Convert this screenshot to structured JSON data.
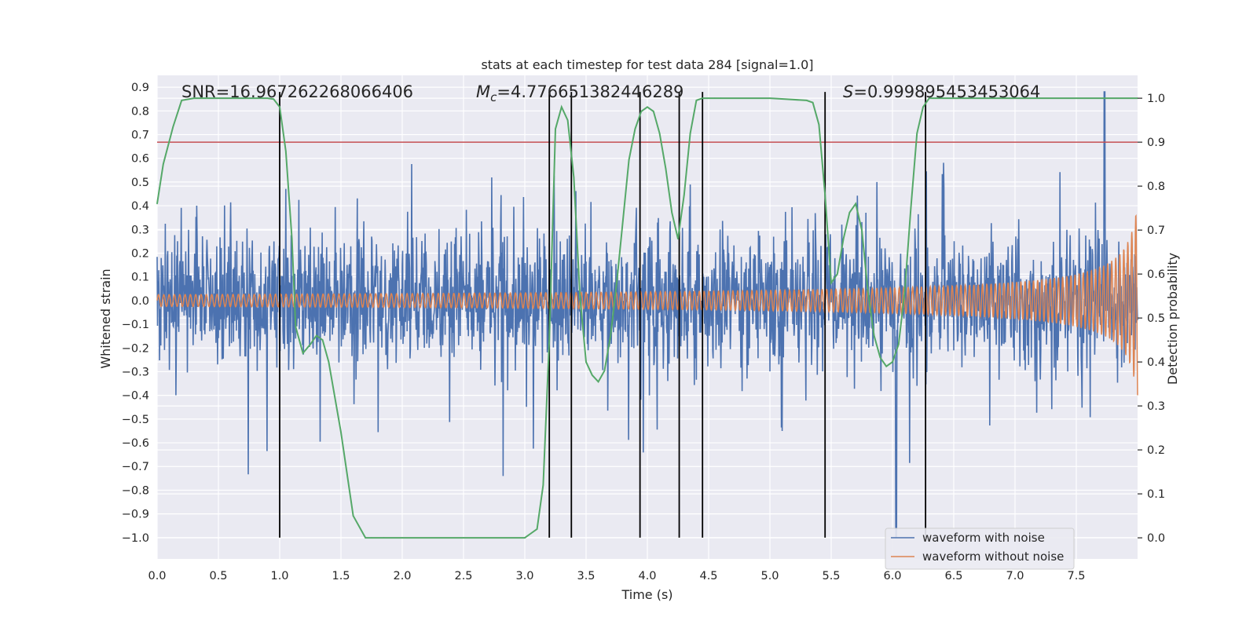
{
  "chart_data": {
    "type": "line",
    "title": "stats at each timestep for test data 284 [signal=1.0]",
    "xlabel": "Time (s)",
    "ylabel_left": "Whitened strain",
    "ylabel_right": "Detection probability",
    "xlim": [
      0.0,
      8.0
    ],
    "ylim_left": [
      -1.09,
      0.95
    ],
    "ylim_right": [
      -0.048,
      1.052
    ],
    "x_ticks": [
      "0.0",
      "0.5",
      "1.0",
      "1.5",
      "2.0",
      "2.5",
      "3.0",
      "3.5",
      "4.0",
      "4.5",
      "5.0",
      "5.5",
      "6.0",
      "6.5",
      "7.0",
      "7.5"
    ],
    "y_ticks_left": [
      "0.9",
      "0.8",
      "0.7",
      "0.6",
      "0.5",
      "0.4",
      "0.3",
      "0.2",
      "0.1",
      "0.0",
      "-0.1",
      "-0.2",
      "-0.3",
      "-0.4",
      "-0.5",
      "-0.6",
      "-0.7",
      "-0.8",
      "-0.9",
      "-1.0"
    ],
    "y_ticks_right": [
      "1.0",
      "0.9",
      "0.8",
      "0.7",
      "0.6",
      "0.5",
      "0.4",
      "0.3",
      "0.2",
      "0.1",
      "0.0"
    ],
    "annotations": {
      "snr": "SNR=16.967262268066406",
      "mc_prefix": "M",
      "mc_sub": "c",
      "mc_value": "=4.776651382446289",
      "s_prefix": "S",
      "s_value": "=0.999895453453064"
    },
    "grid": true,
    "legend_position": "lower-right",
    "series": [
      {
        "name": "waveform with noise",
        "axis": "left",
        "color": "#4c72b0",
        "kind": "noise",
        "typical_range": [
          -0.45,
          0.45
        ],
        "extremes": [
          -1.0,
          0.88
        ]
      },
      {
        "name": "waveform without noise",
        "axis": "left",
        "color": "#dd8452",
        "kind": "chirp",
        "start_amplitude": 0.025,
        "end_amplitude": 0.42,
        "t_coalescence": 8.0
      },
      {
        "name": "",
        "axis": "right",
        "color": "#55a868",
        "kind": "detection_probability",
        "x": [
          0.0,
          0.05,
          0.13,
          0.2,
          0.3,
          0.5,
          0.7,
          0.9,
          0.95,
          1.0,
          1.05,
          1.1,
          1.13,
          1.19,
          1.25,
          1.3,
          1.35,
          1.4,
          1.5,
          1.6,
          1.7,
          1.75,
          1.85,
          2.0,
          2.5,
          3.0,
          3.05,
          3.1,
          3.15,
          3.2,
          3.25,
          3.3,
          3.35,
          3.4,
          3.45,
          3.5,
          3.55,
          3.6,
          3.65,
          3.7,
          3.75,
          3.8,
          3.85,
          3.9,
          3.95,
          4.0,
          4.05,
          4.1,
          4.15,
          4.2,
          4.25,
          4.3,
          4.35,
          4.4,
          4.45,
          4.5,
          4.55,
          4.6,
          5.0,
          5.3,
          5.35,
          5.4,
          5.45,
          5.5,
          5.55,
          5.6,
          5.65,
          5.7,
          5.75,
          5.8,
          5.85,
          5.9,
          5.95,
          6.0,
          6.05,
          6.1,
          6.15,
          6.2,
          6.25,
          6.3,
          6.35,
          6.4,
          6.45,
          6.5,
          7.0,
          7.5,
          8.0
        ],
        "values": [
          0.76,
          0.85,
          0.935,
          0.995,
          1.0,
          1.0,
          1.0,
          1.0,
          0.998,
          0.98,
          0.88,
          0.68,
          0.48,
          0.42,
          0.44,
          0.46,
          0.45,
          0.4,
          0.24,
          0.05,
          0.0,
          0.0,
          0.0,
          0.0,
          0.0,
          0.0,
          0.01,
          0.02,
          0.12,
          0.45,
          0.93,
          0.98,
          0.95,
          0.82,
          0.55,
          0.4,
          0.37,
          0.355,
          0.38,
          0.46,
          0.58,
          0.72,
          0.86,
          0.93,
          0.97,
          0.98,
          0.97,
          0.92,
          0.84,
          0.74,
          0.68,
          0.78,
          0.92,
          0.995,
          1.0,
          1.0,
          1.0,
          1.0,
          1.0,
          0.995,
          0.99,
          0.94,
          0.78,
          0.58,
          0.6,
          0.68,
          0.74,
          0.76,
          0.7,
          0.56,
          0.46,
          0.41,
          0.39,
          0.4,
          0.44,
          0.56,
          0.75,
          0.92,
          0.98,
          1.0,
          1.0,
          1.0,
          1.0,
          1.0,
          1.0,
          1.0,
          1.0
        ]
      },
      {
        "name": "",
        "axis": "right",
        "color": "#c44e52",
        "kind": "threshold",
        "value": 0.9
      }
    ],
    "vertical_markers": [
      1.0,
      3.2,
      3.38,
      3.94,
      4.26,
      4.45,
      5.45,
      6.27
    ],
    "vertical_marker_range": [
      -1.0,
      0.88
    ],
    "vertical_marker_color": "#000000"
  }
}
